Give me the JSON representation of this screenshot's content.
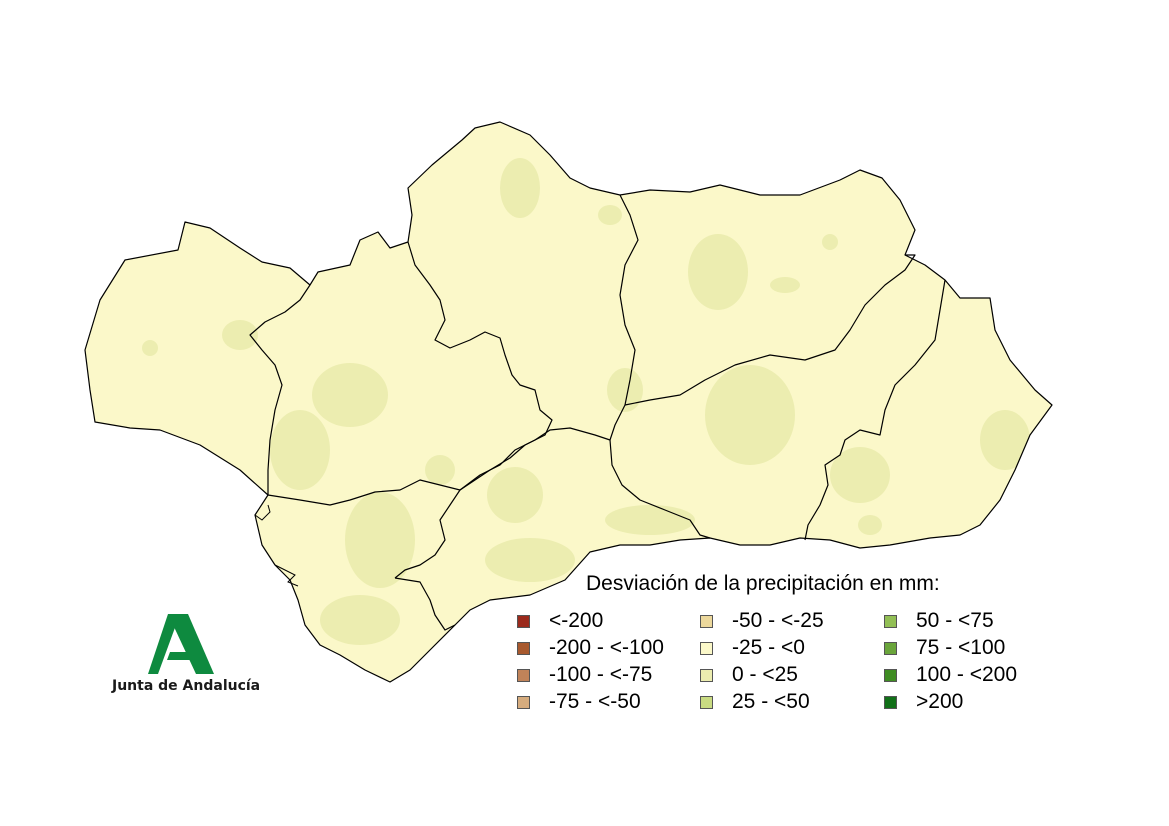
{
  "map": {
    "legend_title": "Desviación de la precipitación en mm:",
    "legend": [
      {
        "label": "<-200",
        "color": "#9b2a1c"
      },
      {
        "label": "-200 - <-100",
        "color": "#a8592e"
      },
      {
        "label": "-100 - <-75",
        "color": "#c08359"
      },
      {
        "label": "-75 - <-50",
        "color": "#d6ac7e"
      },
      {
        "label": "-50 - <-25",
        "color": "#ecd89c"
      },
      {
        "label": "-25 - <0",
        "color": "#fbf8c9"
      },
      {
        "label": "0 - <25",
        "color": "#ecedb0"
      },
      {
        "label": "25 - <50",
        "color": "#c9db82"
      },
      {
        "label": "50 - <75",
        "color": "#92bf55"
      },
      {
        "label": "75 - <100",
        "color": "#6aa53b"
      },
      {
        "label": "100 - <200",
        "color": "#3f8c23"
      },
      {
        "label": ">200",
        "color": "#117018"
      }
    ],
    "base_color": "#fbf8c9",
    "patch_color": "#ecedb0",
    "border_color": "#000000"
  },
  "logo": {
    "text": "Junta de Andalucía",
    "icon": "junta-andalucia-a-logo",
    "color": "#0e8a3f"
  }
}
